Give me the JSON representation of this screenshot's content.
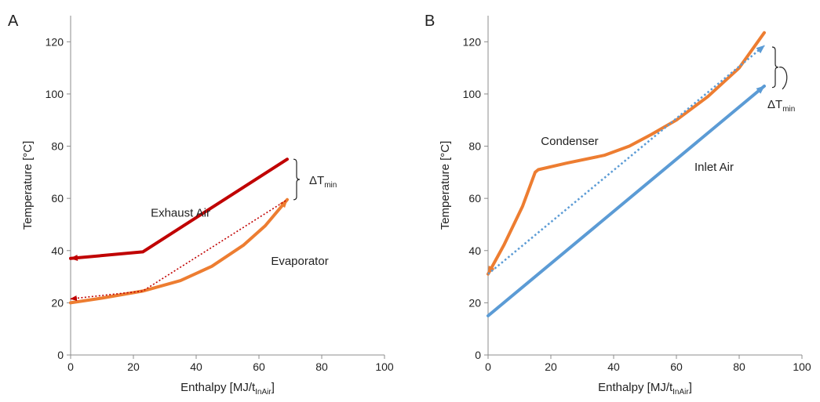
{
  "colors": {
    "dark_red": "#c00000",
    "orange": "#ed7d31",
    "blue": "#5b9bd5",
    "axis": "#8c8c8c",
    "text": "#222222"
  },
  "chart_data": [
    {
      "type": "line",
      "panel_label": "A",
      "xlabel_main": "Enthalpy [MJ/t",
      "xlabel_sub": "InAir",
      "xlabel_end": "]",
      "ylabel": "Temperature [°C]",
      "xlim": [
        0,
        100
      ],
      "ylim": [
        0,
        130
      ],
      "x_ticks": [
        "0",
        "20",
        "40",
        "60",
        "80",
        "100"
      ],
      "y_ticks": [
        "0",
        "20",
        "40",
        "60",
        "80",
        "100",
        "120"
      ],
      "grid": false,
      "series": [
        {
          "name": "Exhaust Air",
          "style": "solid",
          "color": "#c00000",
          "arrow": "start",
          "points": [
            [
              0,
              37
            ],
            [
              23,
              39.5
            ],
            [
              69,
              75
            ]
          ]
        },
        {
          "name": "Evaporator",
          "style": "solid",
          "color": "#ed7d31",
          "arrow": "end",
          "points": [
            [
              0,
              20
            ],
            [
              10,
              21.8
            ],
            [
              23,
              24.5
            ],
            [
              35,
              28.5
            ],
            [
              45,
              34
            ],
            [
              55,
              42
            ],
            [
              62,
              49.5
            ],
            [
              69,
              59.5
            ]
          ]
        },
        {
          "name": "",
          "style": "dotted",
          "color": "#c00000",
          "arrow": "start",
          "points": [
            [
              0,
              21.5
            ],
            [
              23,
              24.5
            ],
            [
              69,
              59.5
            ]
          ]
        }
      ],
      "annotations": [
        {
          "text": "Exhaust Air",
          "x": 35,
          "y": 53
        },
        {
          "text": "Evaporator",
          "x": 73,
          "y": 34.5
        }
      ],
      "delta_label": {
        "main": "ΔT",
        "sub": "min"
      }
    },
    {
      "type": "line",
      "panel_label": "B",
      "xlabel_main": "Enthalpy [MJ/t",
      "xlabel_sub": "InAir",
      "xlabel_end": "]",
      "ylabel": "Temperature [°C]",
      "xlim": [
        0,
        100
      ],
      "ylim": [
        0,
        130
      ],
      "x_ticks": [
        "0",
        "20",
        "40",
        "60",
        "80",
        "100"
      ],
      "y_ticks": [
        "0",
        "20",
        "40",
        "60",
        "80",
        "100",
        "120"
      ],
      "grid": false,
      "series": [
        {
          "name": "Inlet Air",
          "style": "solid",
          "color": "#5b9bd5",
          "arrow": "end",
          "points": [
            [
              0,
              15
            ],
            [
              88,
              103
            ]
          ]
        },
        {
          "name": "Condenser",
          "style": "solid",
          "color": "#ed7d31",
          "arrow": "start",
          "points": [
            [
              0,
              31
            ],
            [
              5,
              42
            ],
            [
              11,
              57
            ],
            [
              15,
              70
            ],
            [
              16,
              71
            ],
            [
              25,
              73.5
            ],
            [
              37,
              76.5
            ],
            [
              45,
              80
            ],
            [
              52,
              84.5
            ],
            [
              60,
              90
            ],
            [
              70,
              99
            ],
            [
              80,
              110
            ],
            [
              88,
              123.5
            ]
          ]
        },
        {
          "name": "",
          "style": "dotted",
          "color": "#5b9bd5",
          "arrow": "end",
          "points": [
            [
              0,
              31
            ],
            [
              88,
              118.5
            ]
          ]
        }
      ],
      "annotations": [
        {
          "text": "Condenser",
          "x": 26,
          "y": 80.5
        },
        {
          "text": "Inlet Air",
          "x": 72,
          "y": 70.5
        }
      ],
      "delta_label": {
        "main": "ΔT",
        "sub": "min"
      }
    }
  ]
}
